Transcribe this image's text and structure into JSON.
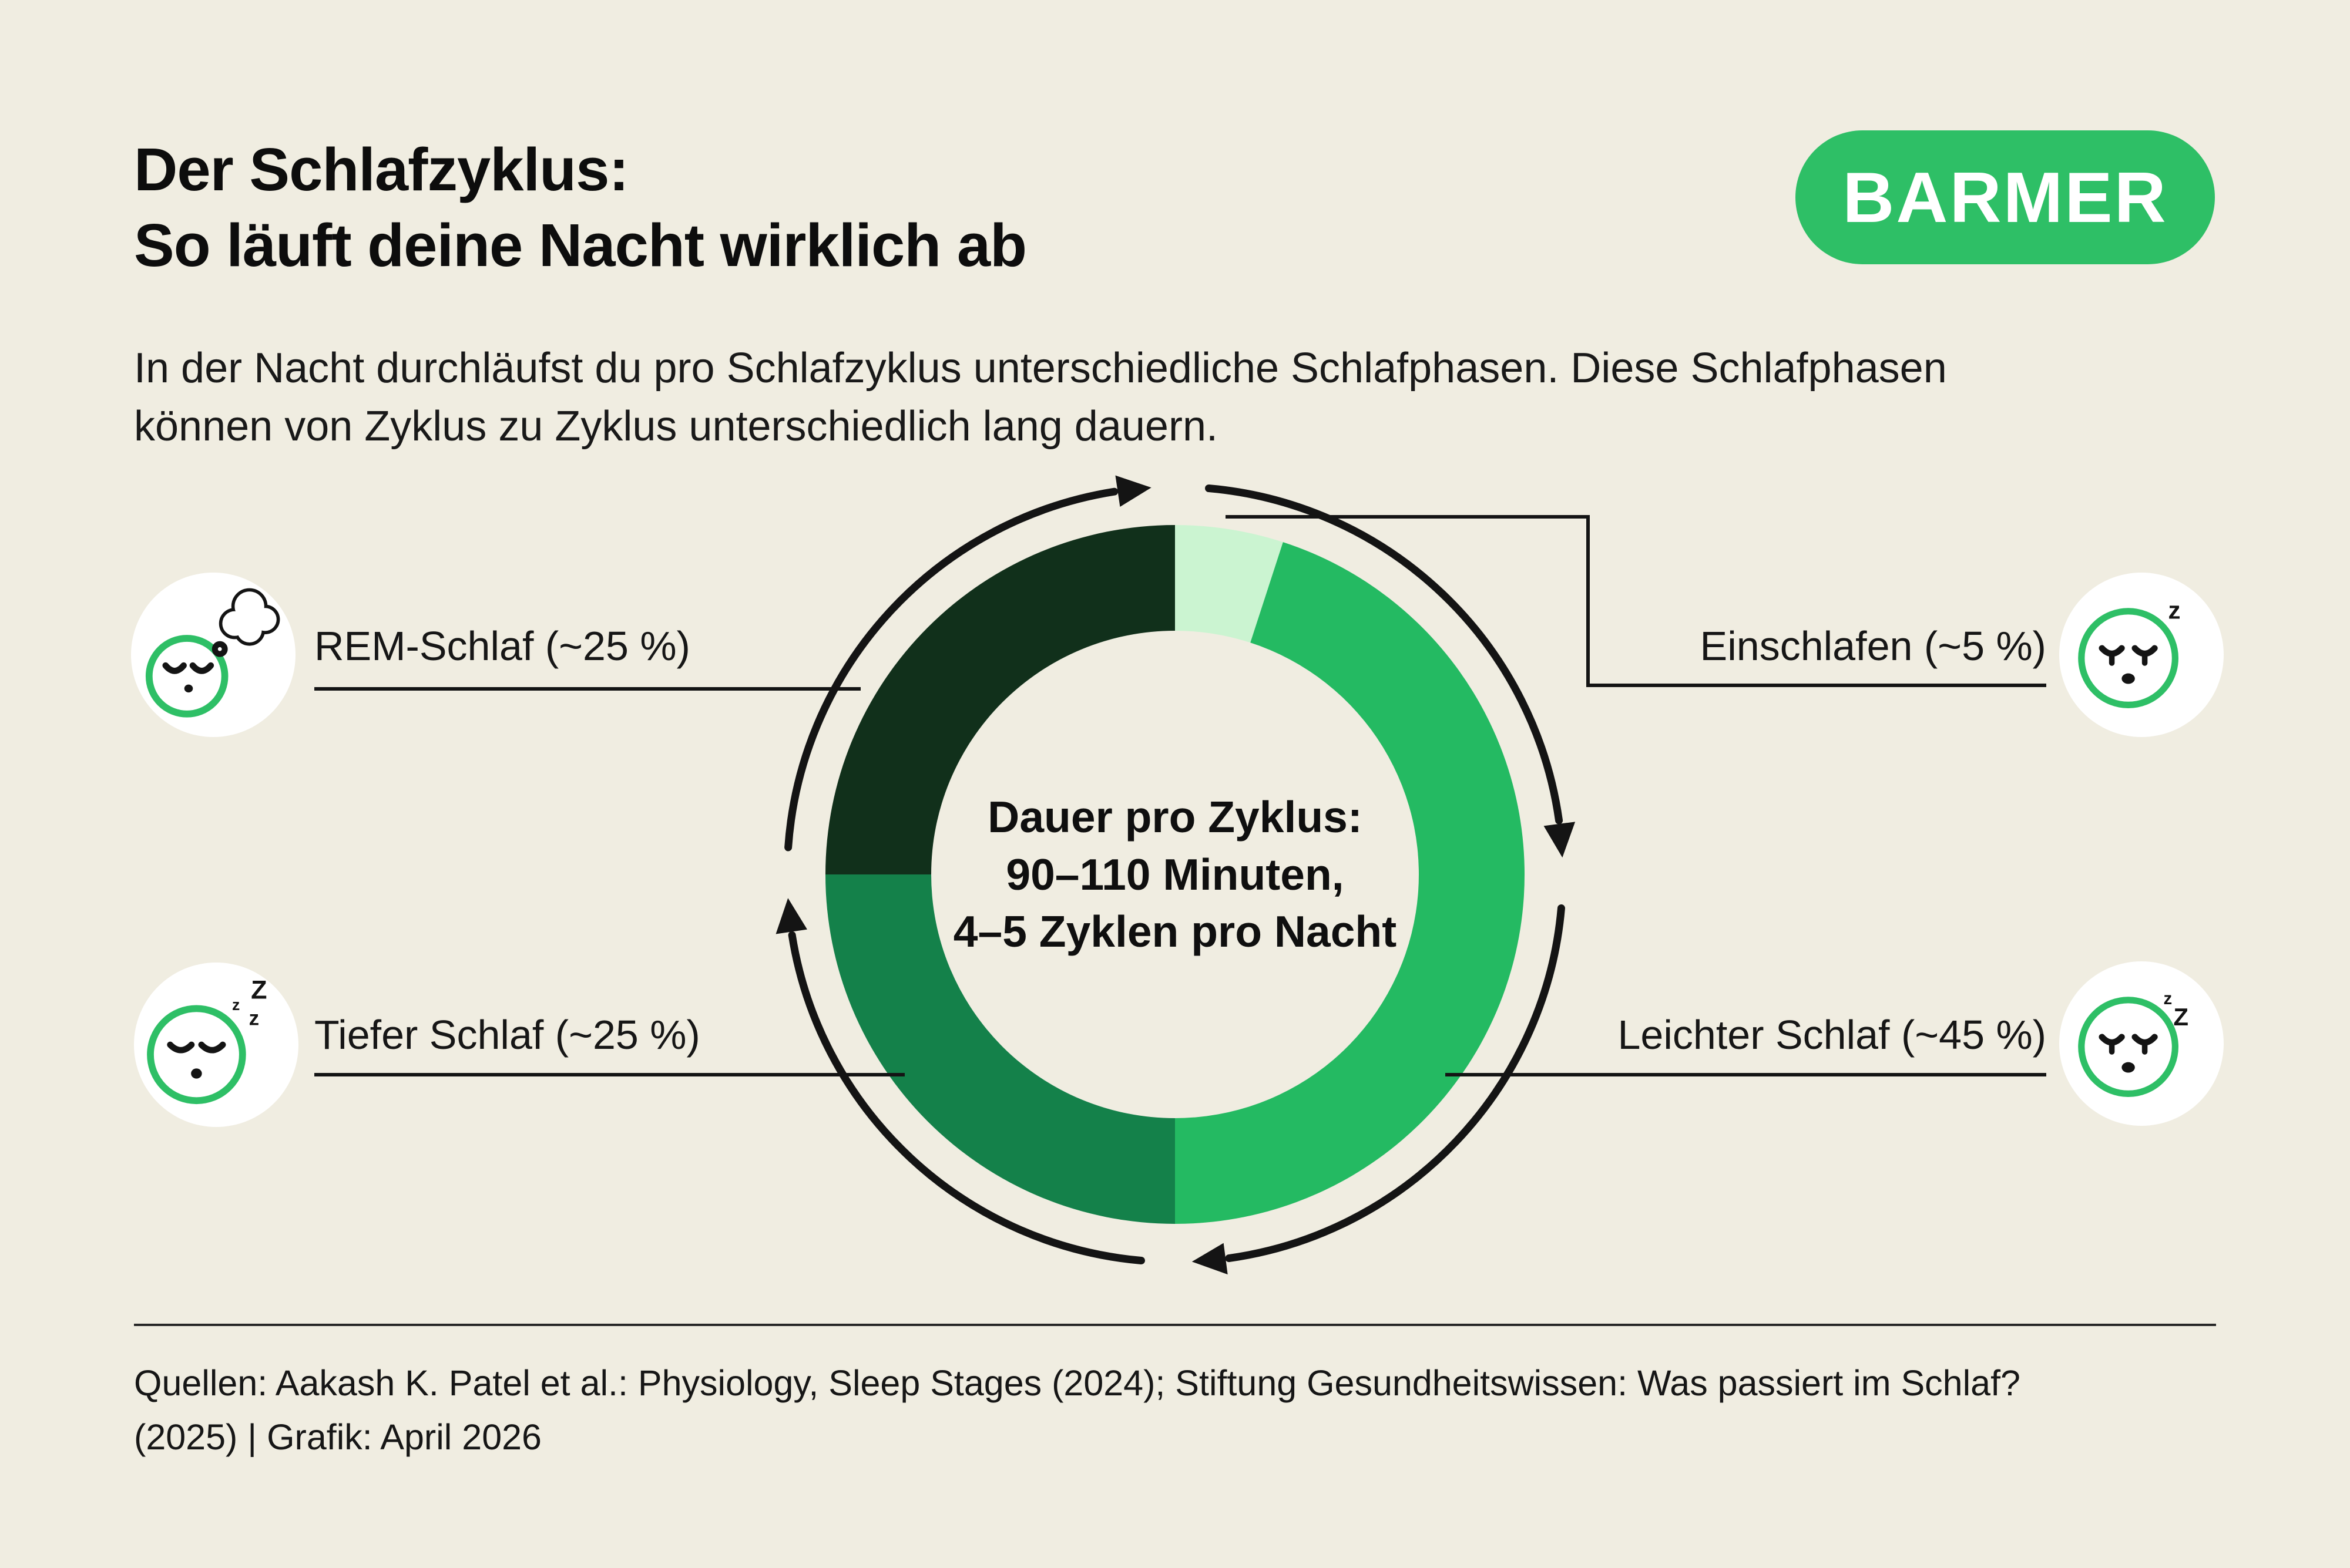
{
  "theme": {
    "background": "#f0ede1",
    "brand_green": "#2ebf66",
    "line_color": "#141414",
    "white": "#ffffff"
  },
  "header": {
    "title_line1": "Der Schlafzyklus:",
    "title_line2": "So läuft deine Nacht wirklich ab",
    "logo_text": "BARMER"
  },
  "intro": {
    "line1": "In der Nacht durchläufst du pro Schlafzyklus unterschiedliche Schlafphasen. Diese Schlafphasen",
    "line2": "können von Zyklus zu Zyklus unterschiedlich lang dauern."
  },
  "chart_data": {
    "type": "pie",
    "subtype": "donut",
    "title": "Der Schlafzyklus: So läuft deine Nacht wirklich ab",
    "direction": "clockwise",
    "start_angle_deg": 0,
    "segments": [
      {
        "id": "einschlafen",
        "label": "Einschlafen",
        "value_pct": 5,
        "color": "#cbf4d1"
      },
      {
        "id": "leichter",
        "label": "Leichter Schlaf",
        "value_pct": 45,
        "color": "#24ba62"
      },
      {
        "id": "tiefer",
        "label": "Tiefer Schlaf",
        "value_pct": 25,
        "color": "#14814a"
      },
      {
        "id": "rem",
        "label": "REM-Schlaf",
        "value_pct": 25,
        "color": "#11301b"
      }
    ],
    "center_label": {
      "line1": "Dauer pro Zyklus:",
      "line2": "90–110 Minuten,",
      "line3": "4–5 Zyklen pro Nacht"
    },
    "legend_position": "around",
    "grid": false
  },
  "phases": [
    {
      "id": "rem",
      "label": "REM-Schlaf (~25 %)",
      "value_pct": 25,
      "icon": "thought-bubble",
      "glyphs": [],
      "side": "left"
    },
    {
      "id": "tiefer",
      "label": "Tiefer Schlaf (~25 %)",
      "value_pct": 25,
      "icon": "zzz",
      "glyphs": [
        "z",
        "Z",
        "z"
      ],
      "side": "left"
    },
    {
      "id": "einschlafen",
      "label": "Einschlafen (~5 %)",
      "value_pct": 5,
      "icon": "z",
      "glyphs": [
        "z"
      ],
      "side": "right"
    },
    {
      "id": "leichter",
      "label": "Leichter Schlaf (~45 %)",
      "value_pct": 45,
      "icon": "zz",
      "glyphs": [
        "z",
        "Z"
      ],
      "side": "right"
    }
  ],
  "footer": {
    "line1": "Quellen: Aakash K. Patel et al.: Physiology, Sleep Stages (2024); Stiftung Gesundheitswissen: Was passiert im Schlaf?",
    "line2": "(2025) | Grafik: April 2026"
  }
}
